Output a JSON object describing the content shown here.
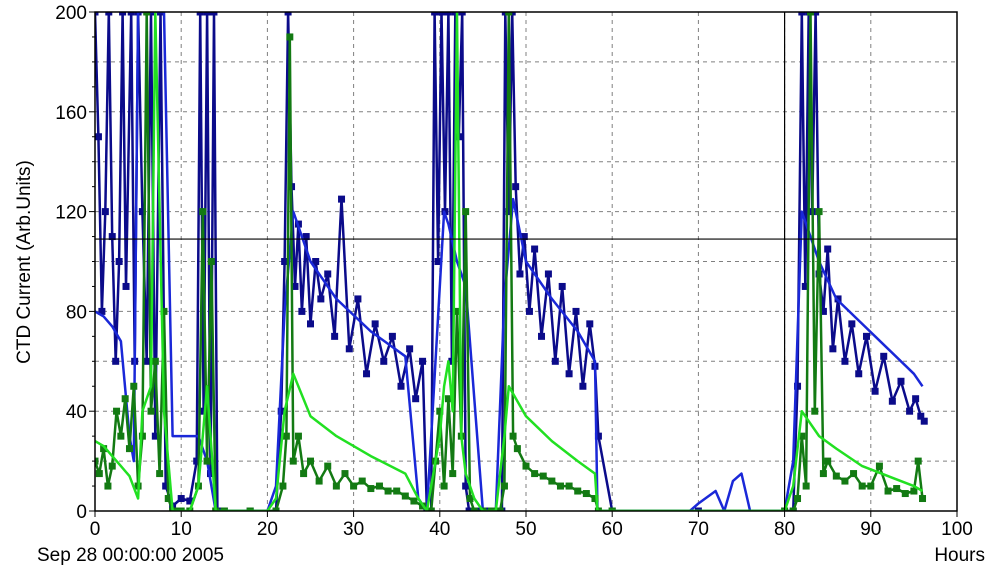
{
  "chart_data": {
    "type": "line",
    "title": "",
    "ylabel": "CTD Current (Arb.Units)",
    "x_unit_label": "Hours",
    "x_origin_label": "Sep 28 00:00:00 2005",
    "xlim": [
      0,
      100
    ],
    "ylim": [
      0,
      200
    ],
    "x_ticks": [
      0,
      10,
      20,
      30,
      40,
      50,
      60,
      70,
      80,
      90,
      100
    ],
    "y_ticks": [
      0,
      40,
      80,
      120,
      160,
      200
    ],
    "grid": true,
    "cursor": {
      "x": 80,
      "y": 109
    },
    "colors": {
      "navy": "#0b0b8a",
      "blue": "#1a28d8",
      "dark_green": "#137a13",
      "light_green": "#22e022"
    },
    "series": [
      {
        "color_key": "navy",
        "style": "line+markers",
        "x": [
          0,
          0.4,
          0.8,
          1.2,
          1.6,
          2.0,
          2.4,
          2.8,
          3.2,
          3.6,
          4.2,
          4.6,
          5.0,
          5.5,
          6.0,
          6.5,
          7.0,
          7.6,
          8.2,
          9.0,
          10.0,
          11.0,
          11.8,
          12.2,
          12.6,
          13.0,
          13.4,
          13.8,
          14.2,
          15,
          18,
          21.0,
          21.6,
          22.0,
          22.4,
          22.8,
          23.2,
          23.6,
          24.0,
          24.5,
          25.0,
          25.6,
          26.2,
          27.0,
          27.8,
          28.6,
          29.5,
          30.5,
          31.5,
          32.5,
          33.5,
          34.5,
          35.5,
          36.5,
          37.2,
          38.0,
          38.5,
          39.0,
          39.4,
          39.8,
          40.2,
          40.6,
          41.0,
          41.4,
          41.8,
          42.2,
          42.6,
          43.0,
          43.4,
          43.8,
          44.5,
          45.5,
          46.5,
          47.2,
          47.6,
          48.0,
          48.4,
          48.8,
          49.3,
          49.8,
          50.4,
          51.0,
          51.8,
          52.6,
          53.4,
          54.2,
          55.0,
          55.8,
          56.6,
          57.4,
          58.0,
          58.4,
          60,
          70,
          81.0,
          81.5,
          82.0,
          82.4,
          82.8,
          83.2,
          83.6,
          84.0,
          84.5,
          85.0,
          85.6,
          86.2,
          87.0,
          87.8,
          88.6,
          89.5,
          90.5,
          91.5,
          92.5,
          93.5,
          94.5,
          95.2,
          95.8,
          96.2
        ],
        "y": [
          200,
          150,
          80,
          120,
          200,
          110,
          60,
          100,
          200,
          90,
          200,
          60,
          200,
          120,
          60,
          200,
          30,
          200,
          10,
          2,
          5,
          4,
          20,
          200,
          40,
          200,
          15,
          200,
          0,
          0,
          0,
          0,
          40,
          100,
          200,
          130,
          90,
          115,
          80,
          110,
          75,
          100,
          85,
          95,
          70,
          125,
          65,
          85,
          55,
          75,
          60,
          70,
          50,
          65,
          45,
          60,
          0,
          0,
          200,
          100,
          200,
          120,
          200,
          60,
          200,
          150,
          200,
          10,
          0,
          0,
          0,
          0,
          0,
          0,
          200,
          120,
          200,
          130,
          95,
          110,
          80,
          105,
          70,
          95,
          60,
          90,
          55,
          80,
          50,
          75,
          58,
          30,
          0,
          0,
          0,
          50,
          200,
          90,
          200,
          120,
          200,
          95,
          80,
          105,
          65,
          85,
          60,
          75,
          55,
          70,
          48,
          62,
          44,
          52,
          40,
          45,
          38,
          36
        ]
      },
      {
        "color_key": "blue",
        "style": "line",
        "x": [
          0,
          1,
          2,
          3,
          4,
          4.5,
          5,
          6,
          7,
          8,
          9,
          10,
          11,
          12,
          13,
          14,
          20,
          21,
          22,
          23,
          25,
          28,
          32,
          36,
          37.5,
          38.5,
          39.5,
          40.5,
          41,
          42,
          43,
          45,
          46.5,
          47.5,
          48.5,
          50,
          53,
          56,
          58,
          58.3,
          60,
          69,
          70,
          72,
          73,
          74,
          75,
          76,
          77,
          80,
          81,
          82,
          84,
          86,
          89,
          92,
          95,
          96
        ],
        "y": [
          80,
          78,
          74,
          68,
          30,
          20,
          200,
          200,
          200,
          200,
          30,
          30,
          30,
          30,
          20,
          0,
          0,
          10,
          80,
          120,
          100,
          85,
          72,
          62,
          5,
          0,
          60,
          120,
          115,
          100,
          90,
          0,
          0,
          85,
          125,
          100,
          85,
          72,
          60,
          0,
          0,
          0,
          3,
          8,
          0,
          12,
          15,
          0,
          0,
          0,
          20,
          120,
          100,
          85,
          75,
          65,
          55,
          50
        ]
      },
      {
        "color_key": "dark_green",
        "style": "line+markers",
        "x": [
          0,
          0.5,
          1.0,
          1.5,
          2.0,
          2.5,
          3.0,
          3.5,
          4.0,
          4.5,
          5.0,
          5.5,
          6.0,
          6.5,
          7.0,
          7.5,
          8.0,
          8.5,
          9.0,
          9.5,
          10,
          11,
          12,
          12.5,
          13,
          13.5,
          14,
          15,
          18,
          21,
          21.8,
          22.2,
          22.6,
          23.0,
          23.6,
          24.2,
          25,
          26,
          27,
          28,
          29,
          30,
          31,
          32,
          33,
          34,
          35,
          36,
          37,
          38,
          39,
          39.5,
          40,
          40.5,
          41,
          41.5,
          42,
          42.5,
          43,
          43.5,
          44,
          45,
          46,
          47,
          47.5,
          48,
          48.5,
          49,
          50,
          51,
          52,
          53,
          54,
          55,
          56,
          57,
          58,
          58.4,
          60,
          80,
          81,
          81.5,
          82,
          82.5,
          83,
          83.5,
          84,
          84.5,
          85,
          86,
          87,
          88,
          89,
          90,
          91,
          92,
          93,
          94,
          95,
          95.5,
          96
        ],
        "y": [
          20,
          15,
          25,
          10,
          18,
          40,
          30,
          45,
          25,
          50,
          10,
          30,
          200,
          40,
          60,
          15,
          80,
          5,
          0,
          0,
          0,
          0,
          10,
          120,
          20,
          100,
          0,
          0,
          0,
          0,
          10,
          30,
          190,
          20,
          30,
          15,
          20,
          12,
          18,
          10,
          15,
          10,
          12,
          9,
          10,
          8,
          8,
          6,
          4,
          2,
          0,
          20,
          40,
          10,
          45,
          15,
          80,
          30,
          120,
          5,
          0,
          0,
          0,
          0,
          10,
          200,
          30,
          25,
          18,
          15,
          14,
          12,
          10,
          10,
          8,
          7,
          5,
          0,
          0,
          0,
          0,
          5,
          30,
          10,
          200,
          40,
          120,
          15,
          20,
          14,
          12,
          15,
          10,
          10,
          18,
          8,
          9,
          7,
          8,
          20,
          5
        ]
      },
      {
        "color_key": "light_green",
        "style": "line",
        "x": [
          0,
          1,
          2,
          3,
          4,
          5,
          5.5,
          6,
          6.5,
          7,
          8,
          9,
          10,
          11,
          12,
          13,
          14,
          20,
          21,
          22,
          23,
          25,
          28,
          32,
          36,
          37.5,
          38.5,
          39.5,
          40,
          40.5,
          41,
          41.5,
          42,
          42.5,
          43,
          44,
          45,
          46.5,
          47.5,
          48,
          50,
          53,
          56,
          58,
          58.3,
          60,
          80,
          81,
          82,
          84,
          86,
          89,
          92,
          95,
          96
        ],
        "y": [
          28,
          26,
          22,
          18,
          14,
          5,
          40,
          45,
          50,
          200,
          40,
          0,
          0,
          0,
          10,
          50,
          0,
          0,
          5,
          40,
          55,
          38,
          30,
          22,
          15,
          5,
          0,
          20,
          30,
          50,
          60,
          40,
          200,
          30,
          15,
          5,
          0,
          0,
          30,
          50,
          38,
          28,
          20,
          15,
          0,
          0,
          0,
          10,
          40,
          30,
          25,
          18,
          14,
          10,
          8
        ]
      }
    ]
  },
  "labels": {
    "ylabel": "CTD Current (Arb.Units)",
    "x_unit": "Hours",
    "x_origin": "Sep 28 00:00:00 2005"
  }
}
